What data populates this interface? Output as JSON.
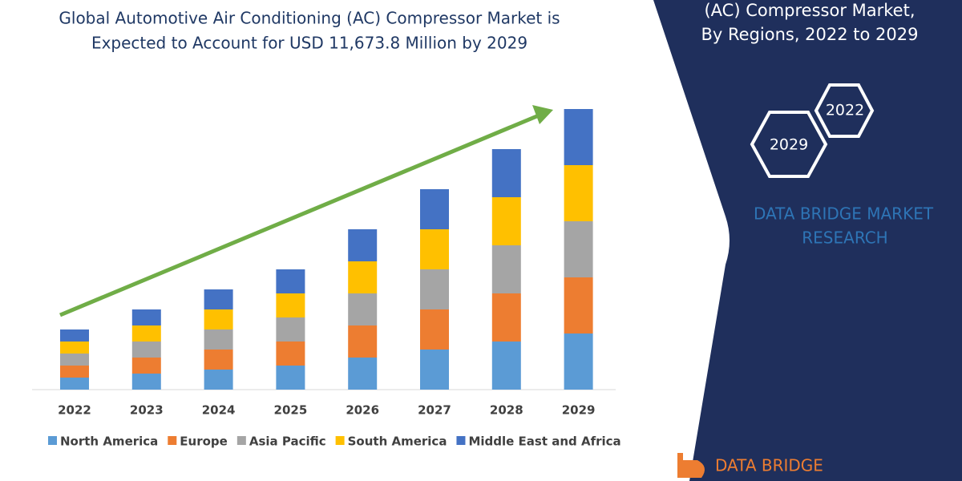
{
  "title_lines": [
    "Global Automotive Air Conditioning (AC) Compressor Market is",
    "Expected to Account for USD 11,673.8 Million by 2029"
  ],
  "chart_data": {
    "type": "stacked_bar",
    "categories": [
      "2022",
      "2023",
      "2024",
      "2025",
      "2026",
      "2027",
      "2028",
      "2029"
    ],
    "series": [
      {
        "name": "North America",
        "color": "#5b9bd5",
        "values": [
          15,
          20,
          25,
          30,
          40,
          50,
          60,
          70
        ]
      },
      {
        "name": "Europe",
        "color": "#ed7d31",
        "values": [
          15,
          20,
          25,
          30,
          40,
          50,
          60,
          70
        ]
      },
      {
        "name": "Asia Pacific",
        "color": "#a5a5a5",
        "values": [
          15,
          20,
          25,
          30,
          40,
          50,
          60,
          70
        ]
      },
      {
        "name": "South America",
        "color": "#ffc000",
        "values": [
          15,
          20,
          25,
          30,
          40,
          50,
          60,
          70
        ]
      },
      {
        "name": "Middle East and Africa",
        "color": "#4472c4",
        "values": [
          15,
          20,
          25,
          30,
          40,
          50,
          60,
          70
        ]
      }
    ],
    "ylim": [
      0,
      350
    ]
  },
  "side_title_lines": [
    "(AC) Compressor Market,",
    "By Regions, 2022 to 2029"
  ],
  "hexagons": [
    "2022",
    "2029"
  ],
  "brand_lines": [
    "DATA BRIDGE MARKET",
    "RESEARCH"
  ],
  "logo": "DATA BRIDGE"
}
